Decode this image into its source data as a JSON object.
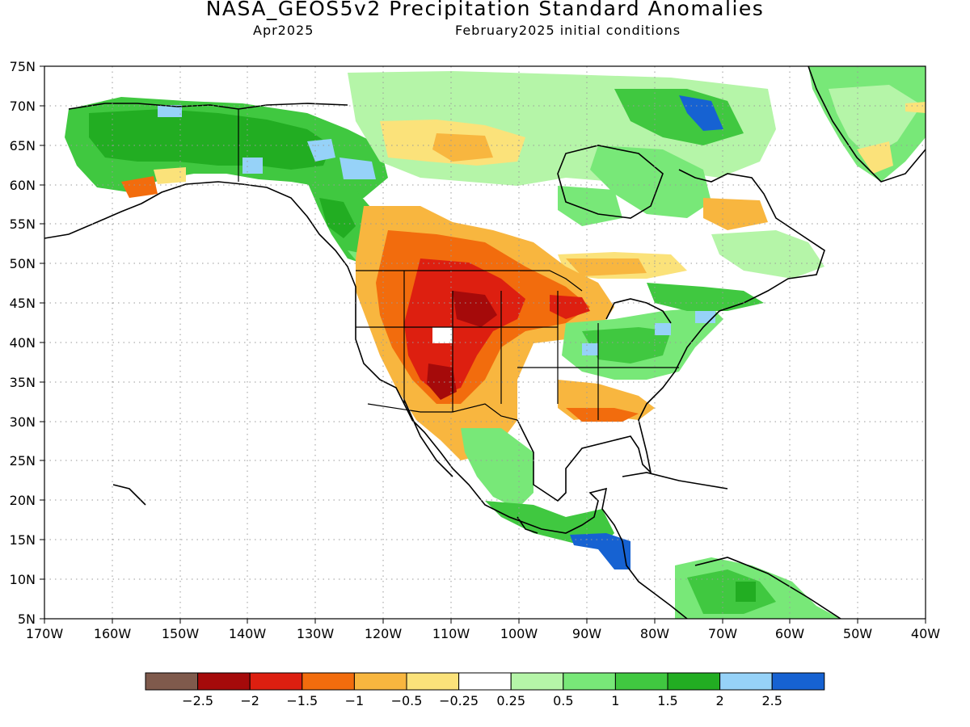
{
  "header": {
    "title": "NASA_GEOS5v2 Precipitation Standard Anomalies",
    "valid_month": "Apr2025",
    "initial_conditions": "February2025 initial conditions"
  },
  "axes": {
    "lat_labels": [
      "75N",
      "70N",
      "65N",
      "60N",
      "55N",
      "50N",
      "45N",
      "40N",
      "35N",
      "30N",
      "25N",
      "20N",
      "15N",
      "10N",
      "5N"
    ],
    "lon_labels": [
      "170W",
      "160W",
      "150W",
      "140W",
      "130W",
      "120W",
      "110W",
      "100W",
      "90W",
      "80W",
      "70W",
      "60W",
      "50W",
      "40W"
    ],
    "lat_range": [
      5,
      75
    ],
    "lon_range": [
      -170,
      -40
    ],
    "grid": "dotted"
  },
  "colorbar": {
    "colors": [
      "#7f5a4c",
      "#a50a0a",
      "#dd1f10",
      "#f26c0d",
      "#f8b63f",
      "#fbe27a",
      "#ffffff",
      "#b5f5a8",
      "#78e878",
      "#40c840",
      "#22ad22",
      "#96d2f8",
      "#1662d2"
    ],
    "labels": [
      "-2.5",
      "-2",
      "-1.5",
      "-1",
      "-0.5",
      "-0.25",
      "0.25",
      "0.5",
      "1",
      "1.5",
      "2",
      "2.5"
    ]
  }
}
